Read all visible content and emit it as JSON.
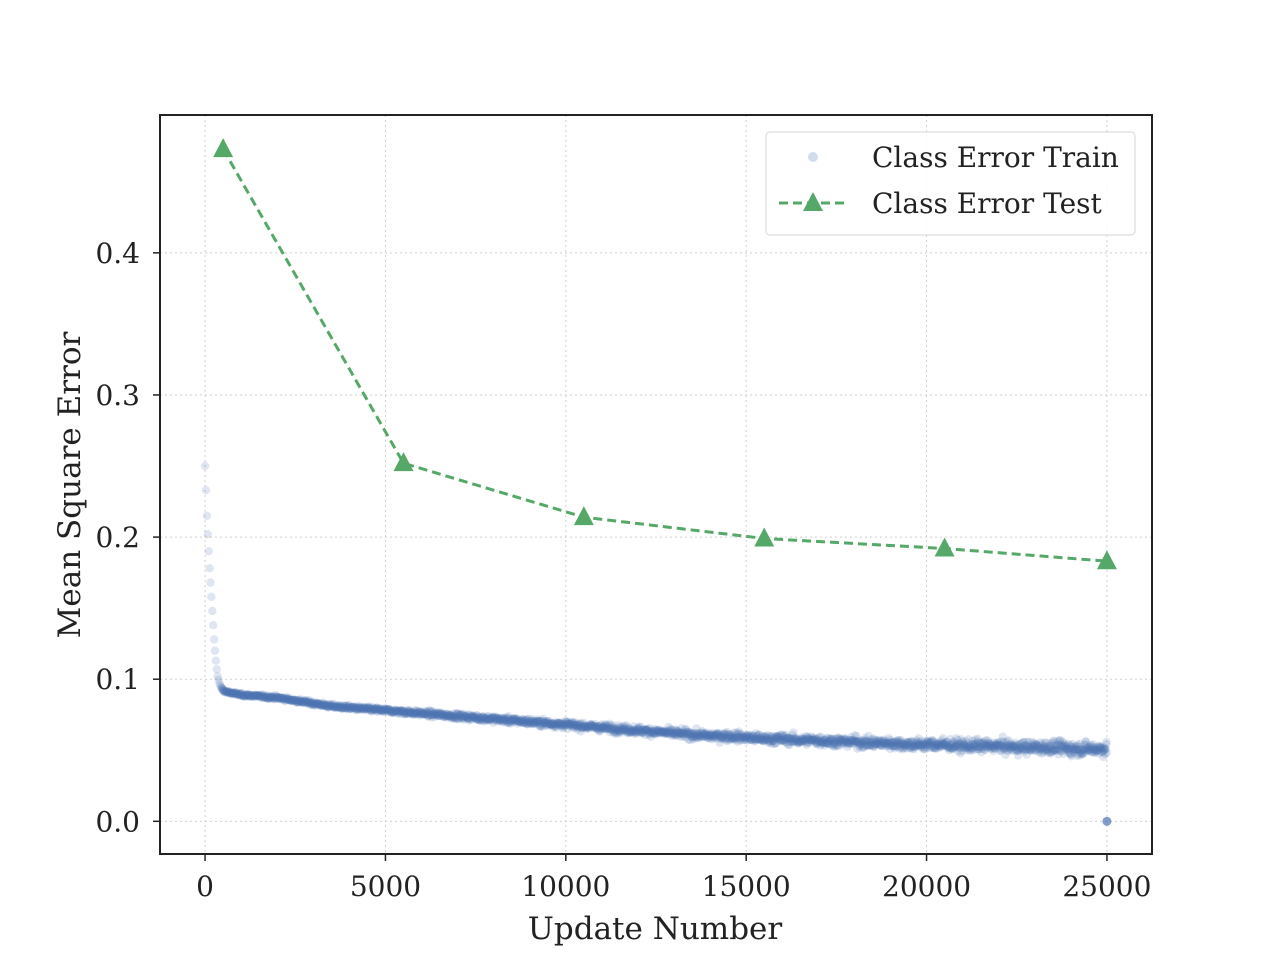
{
  "colors": {
    "train": "#4C72B0",
    "test": "#55A868",
    "axis": "#222222",
    "grid": "#cfcfcf"
  },
  "chart_data": {
    "type": "scatter",
    "title": "",
    "xlabel": "Update Number",
    "ylabel": "Mean Square Error",
    "xlim": [
      -1250,
      26250
    ],
    "ylim": [
      -0.023,
      0.497
    ],
    "x_ticks": [
      0,
      5000,
      10000,
      15000,
      20000,
      25000
    ],
    "x_tick_labels": [
      "0",
      "5000",
      "10000",
      "15000",
      "20000",
      "25000"
    ],
    "y_ticks": [
      0.0,
      0.1,
      0.2,
      0.3,
      0.4
    ],
    "y_tick_labels": [
      "0.0",
      "0.1",
      "0.2",
      "0.3",
      "0.4"
    ],
    "grid": true,
    "legend_position": "top-right",
    "series": [
      {
        "name": "Class Error Train",
        "type": "scatter",
        "marker": "circle",
        "x": [
          0,
          25,
          50,
          75,
          100,
          125,
          150,
          175,
          200,
          225,
          250,
          275,
          300,
          325,
          350,
          400,
          450,
          500,
          600,
          800,
          1000,
          1500,
          2000,
          2500,
          3000,
          3500,
          4000,
          4500,
          5000,
          5500,
          6000,
          6500,
          7000,
          7500,
          8000,
          8500,
          9000,
          9500,
          10000,
          10500,
          11000,
          11500,
          12000,
          12500,
          13000,
          13500,
          14000,
          14500,
          15000,
          15500,
          16000,
          16500,
          17000,
          17500,
          18000,
          18500,
          19000,
          19500,
          20000,
          20500,
          21000,
          21500,
          22000,
          22500,
          23000,
          23500,
          24000,
          24500,
          25000
        ],
        "y": [
          0.25,
          0.233,
          0.215,
          0.202,
          0.19,
          0.178,
          0.168,
          0.158,
          0.148,
          0.138,
          0.128,
          0.12,
          0.113,
          0.107,
          0.102,
          0.097,
          0.094,
          0.092,
          0.091,
          0.09,
          0.089,
          0.088,
          0.087,
          0.085,
          0.083,
          0.081,
          0.08,
          0.079,
          0.078,
          0.077,
          0.076,
          0.075,
          0.074,
          0.073,
          0.072,
          0.071,
          0.07,
          0.069,
          0.068,
          0.067,
          0.066,
          0.065,
          0.064,
          0.063,
          0.062,
          0.061,
          0.06,
          0.06,
          0.059,
          0.058,
          0.058,
          0.057,
          0.057,
          0.056,
          0.056,
          0.055,
          0.055,
          0.054,
          0.054,
          0.054,
          0.053,
          0.053,
          0.053,
          0.052,
          0.052,
          0.052,
          0.051,
          0.051,
          0.051
        ],
        "outlier": {
          "x": 25000,
          "y": 0.0
        }
      },
      {
        "name": "Class Error Test",
        "type": "line",
        "marker": "triangle",
        "linestyle": "dashed",
        "x": [
          500,
          5500,
          10500,
          15500,
          20500,
          25000
        ],
        "y": [
          0.473,
          0.252,
          0.214,
          0.199,
          0.192,
          0.183
        ]
      }
    ]
  }
}
